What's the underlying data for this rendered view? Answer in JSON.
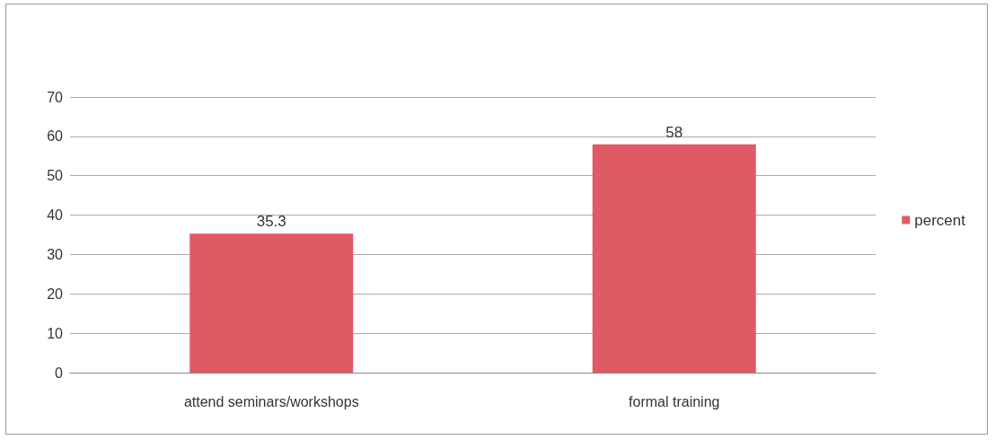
{
  "chart_data": {
    "type": "bar",
    "categories": [
      "attend seminars/workshops",
      "formal training"
    ],
    "series": [
      {
        "name": "percent",
        "color": "#e05a66",
        "values": [
          35.3,
          58
        ]
      }
    ],
    "ylim": [
      0,
      70
    ],
    "yticks": [
      0,
      10,
      20,
      30,
      40,
      50,
      60,
      70
    ],
    "grid": "y",
    "legend": "right",
    "data_labels": true
  }
}
